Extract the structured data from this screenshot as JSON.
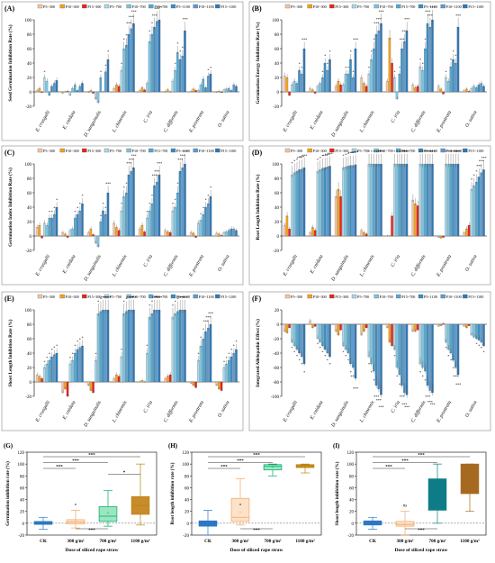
{
  "labels": {
    "species": [
      "E. crusgalli",
      "E. cnidata",
      "D. sanguinalis",
      "L. chinensis",
      "C. iria",
      "C. difformis",
      "E. prostrata",
      "O. sativa"
    ],
    "legend": [
      "P5~300",
      "P10~300",
      "P15~300",
      "P5~700",
      "P10~700",
      "P15~700",
      "P5~1100",
      "P10~1100",
      "P15~1100"
    ],
    "box_categories": [
      "CK",
      "300 g/m²",
      "700 g/m²",
      "1100 g/m²"
    ],
    "box_xlabel": "Dose of siliced rape straw",
    "sig3": "***",
    "sig2": "**",
    "sig1": "*",
    "ns": "ns"
  },
  "colors": {
    "series": [
      "#f5c6a5",
      "#f2a21c",
      "#e8231b",
      "#a9d8ea",
      "#7ec3e0",
      "#54a9d3",
      "#3b8ec2",
      "#5b9bd5",
      "#2e78b5"
    ],
    "box": [
      "#2b78c5",
      "#f4a460",
      "#00a86b",
      "#b8860b"
    ],
    "box_fill": [
      "#2b78c5",
      "#fde2c8",
      "#9be6c0",
      "#c98b2b"
    ],
    "teal": "#0e7c86",
    "brown": "#a56a1f"
  },
  "chart_data": [
    {
      "id": "A",
      "type": "bar",
      "tag": "(A)",
      "ylabel": "Seed Germination Inhibition Rate (%)",
      "yticks": [
        -20,
        0,
        20,
        40,
        60,
        80,
        100
      ],
      "ylim": [
        -20,
        100
      ],
      "series": [
        {
          "name": "P5~300",
          "values": [
            2,
            -2,
            -1,
            5,
            2,
            1,
            1,
            -1
          ]
        },
        {
          "name": "P10~300",
          "values": [
            5,
            0,
            2,
            10,
            6,
            3,
            4,
            1
          ]
        },
        {
          "name": "P15~300",
          "values": [
            -1,
            1,
            -2,
            8,
            3,
            0,
            2,
            -1
          ]
        },
        {
          "name": "P5~700",
          "values": [
            20,
            -5,
            -10,
            30,
            12,
            15,
            2,
            3
          ]
        },
        {
          "name": "P10~700",
          "values": [
            15,
            5,
            -15,
            60,
            70,
            30,
            10,
            4
          ]
        },
        {
          "name": "P15~700",
          "values": [
            -5,
            10,
            20,
            65,
            80,
            55,
            18,
            5
          ]
        },
        {
          "name": "P5~1100",
          "values": [
            8,
            2,
            0,
            80,
            90,
            45,
            6,
            2
          ]
        },
        {
          "name": "P10~1100",
          "values": [
            12,
            8,
            28,
            88,
            98,
            50,
            22,
            10
          ]
        },
        {
          "name": "P15~1100",
          "values": [
            16,
            12,
            45,
            95,
            100,
            85,
            25,
            8
          ]
        }
      ]
    },
    {
      "id": "B",
      "type": "bar",
      "tag": "(B)",
      "ylabel": "Germination Energy Inhibition Rate (%)",
      "yticks": [
        -20,
        0,
        20,
        40,
        60,
        80,
        100
      ],
      "ylim": [
        -20,
        100
      ],
      "series": [
        {
          "name": "P5~300",
          "values": [
            22,
            5,
            8,
            20,
            15,
            10,
            8,
            2
          ]
        },
        {
          "name": "P10~300",
          "values": [
            20,
            3,
            15,
            12,
            75,
            6,
            4,
            4
          ]
        },
        {
          "name": "P15~300",
          "values": [
            -5,
            -2,
            10,
            8,
            40,
            8,
            -3,
            1
          ]
        },
        {
          "name": "P5~700",
          "values": [
            10,
            8,
            10,
            25,
            20,
            35,
            20,
            5
          ]
        },
        {
          "name": "P10~700",
          "values": [
            15,
            12,
            25,
            45,
            -10,
            30,
            15,
            8
          ]
        },
        {
          "name": "P15~700",
          "values": [
            12,
            20,
            25,
            60,
            25,
            60,
            35,
            6
          ]
        },
        {
          "name": "P5~1100",
          "values": [
            30,
            40,
            45,
            80,
            60,
            95,
            45,
            10
          ]
        },
        {
          "name": "P10~1100",
          "values": [
            25,
            30,
            20,
            85,
            70,
            90,
            40,
            12
          ]
        },
        {
          "name": "P15~1100",
          "values": [
            60,
            45,
            60,
            95,
            85,
            100,
            90,
            8
          ]
        }
      ]
    },
    {
      "id": "C",
      "type": "bar",
      "tag": "(C)",
      "ylabel": "Germination Index Inhibition Rate (%)",
      "yticks": [
        -20,
        0,
        20,
        40,
        60,
        80,
        100
      ],
      "ylim": [
        -20,
        100
      ],
      "series": [
        {
          "name": "P5~300",
          "values": [
            12,
            5,
            5,
            18,
            10,
            8,
            5,
            4
          ]
        },
        {
          "name": "P10~300",
          "values": [
            15,
            3,
            10,
            12,
            15,
            6,
            4,
            3
          ]
        },
        {
          "name": "P15~300",
          "values": [
            -3,
            -2,
            2,
            8,
            6,
            5,
            -2,
            1
          ]
        },
        {
          "name": "P5~700",
          "values": [
            18,
            8,
            -10,
            35,
            25,
            35,
            18,
            5
          ]
        },
        {
          "name": "P10~700",
          "values": [
            15,
            10,
            -15,
            55,
            35,
            40,
            22,
            6
          ]
        },
        {
          "name": "P15~700",
          "values": [
            25,
            25,
            20,
            60,
            45,
            60,
            30,
            8
          ]
        },
        {
          "name": "P5~1100",
          "values": [
            25,
            30,
            35,
            85,
            70,
            90,
            40,
            10
          ]
        },
        {
          "name": "P10~1100",
          "values": [
            30,
            35,
            30,
            90,
            75,
            95,
            45,
            10
          ]
        },
        {
          "name": "P15~1100",
          "values": [
            40,
            45,
            60,
            95,
            85,
            100,
            55,
            8
          ]
        }
      ]
    },
    {
      "id": "D",
      "type": "bar",
      "tag": "(D)",
      "ylabel": "Root Length Inhibition Rate (%)",
      "yticks": [
        -20,
        0,
        20,
        40,
        60,
        80,
        100
      ],
      "ylim": [
        -20,
        100
      ],
      "series": [
        {
          "name": "P5~300",
          "values": [
            15,
            5,
            55,
            8,
            0,
            50,
            -2,
            5
          ]
        },
        {
          "name": "P10~300",
          "values": [
            28,
            12,
            65,
            5,
            0,
            45,
            -3,
            10
          ]
        },
        {
          "name": "P15~300",
          "values": [
            10,
            8,
            55,
            3,
            28,
            42,
            -2,
            15
          ]
        },
        {
          "name": "P5~700",
          "values": [
            85,
            90,
            95,
            100,
            100,
            100,
            100,
            65
          ]
        },
        {
          "name": "P10~700",
          "values": [
            88,
            92,
            96,
            100,
            100,
            100,
            100,
            70
          ]
        },
        {
          "name": "P15~700",
          "values": [
            90,
            94,
            97,
            100,
            100,
            100,
            100,
            75
          ]
        },
        {
          "name": "P5~1100",
          "values": [
            92,
            95,
            98,
            100,
            100,
            100,
            100,
            82
          ]
        },
        {
          "name": "P10~1100",
          "values": [
            93,
            96,
            98,
            100,
            100,
            100,
            100,
            88
          ]
        },
        {
          "name": "P15~1100",
          "values": [
            95,
            97,
            99,
            100,
            100,
            100,
            100,
            92
          ]
        }
      ]
    },
    {
      "id": "E",
      "type": "bar",
      "tag": "(E)",
      "ylabel": "Shoot Length Inhibition Rate (%)",
      "yticks": [
        -20,
        0,
        20,
        40,
        60,
        80,
        100
      ],
      "ylim": [
        -20,
        100
      ],
      "series": [
        {
          "name": "P5~300",
          "values": [
            10,
            -15,
            -5,
            5,
            0,
            5,
            -2,
            -5
          ]
        },
        {
          "name": "P10~300",
          "values": [
            8,
            -10,
            -12,
            10,
            2,
            8,
            -5,
            -10
          ]
        },
        {
          "name": "P15~300",
          "values": [
            5,
            -20,
            -15,
            8,
            0,
            10,
            -8,
            -12
          ]
        },
        {
          "name": "P5~700",
          "values": [
            20,
            25,
            30,
            35,
            40,
            90,
            30,
            20
          ]
        },
        {
          "name": "P10~700",
          "values": [
            25,
            30,
            95,
            95,
            90,
            95,
            50,
            25
          ]
        },
        {
          "name": "P15~700",
          "values": [
            30,
            40,
            98,
            98,
            95,
            98,
            60,
            30
          ]
        },
        {
          "name": "P5~1100",
          "values": [
            35,
            45,
            100,
            100,
            100,
            100,
            70,
            35
          ]
        },
        {
          "name": "P10~1100",
          "values": [
            38,
            48,
            100,
            100,
            100,
            100,
            75,
            40
          ]
        },
        {
          "name": "P15~1100",
          "values": [
            40,
            50,
            100,
            100,
            100,
            100,
            80,
            45
          ]
        }
      ]
    },
    {
      "id": "F",
      "type": "bar",
      "tag": "(F)",
      "ylabel": "Integrated Allelopathic Effect (%)",
      "yticks": [
        -100,
        -80,
        -60,
        -40,
        -20,
        0,
        20
      ],
      "ylim": [
        -100,
        20
      ],
      "series": [
        {
          "name": "P5~300",
          "values": [
            -10,
            5,
            -10,
            -15,
            -5,
            -10,
            -3,
            -3
          ]
        },
        {
          "name": "P10~300",
          "values": [
            -12,
            -5,
            -15,
            -10,
            -25,
            -10,
            -2,
            -5
          ]
        },
        {
          "name": "P15~300",
          "values": [
            -5,
            -3,
            -8,
            -5,
            -30,
            -8,
            1,
            -2
          ]
        },
        {
          "name": "P5~700",
          "values": [
            -25,
            -20,
            -30,
            -45,
            -35,
            -55,
            -25,
            -15
          ]
        },
        {
          "name": "P10~700",
          "values": [
            -30,
            -25,
            -35,
            -55,
            -60,
            -60,
            -35,
            -18
          ]
        },
        {
          "name": "P15~700",
          "values": [
            -35,
            -30,
            -40,
            -65,
            -70,
            -65,
            -40,
            -20
          ]
        },
        {
          "name": "P5~1100",
          "values": [
            -40,
            -35,
            -55,
            -85,
            -85,
            -85,
            -50,
            -22
          ]
        },
        {
          "name": "P10~1100",
          "values": [
            -45,
            -40,
            -60,
            -90,
            -95,
            -92,
            -60,
            -25
          ]
        },
        {
          "name": "P15~1100",
          "values": [
            -55,
            -45,
            -75,
            -98,
            -98,
            -95,
            -70,
            -30
          ]
        }
      ]
    },
    {
      "id": "G",
      "type": "box",
      "tag": "(G)",
      "ylabel": "Germination inhibition rate (%)",
      "yticks": [
        -20,
        0,
        20,
        40,
        60,
        80,
        100,
        120
      ],
      "ylim": [
        -20,
        120
      ],
      "boxes": [
        {
          "min": -10,
          "q1": -2,
          "median": 0,
          "q3": 3,
          "max": 10,
          "mean": 0
        },
        {
          "min": -8,
          "q1": -1,
          "median": 2,
          "q3": 6,
          "max": 22,
          "mean": 3
        },
        {
          "min": -5,
          "q1": 3,
          "median": 12,
          "q3": 28,
          "max": 55,
          "mean": 17
        },
        {
          "min": -3,
          "q1": 15,
          "median": 30,
          "q3": 45,
          "max": 100,
          "mean": 32
        }
      ],
      "sig_top": [
        "***",
        "***",
        "***",
        "*"
      ],
      "sig_mid": "*",
      "sig_bottom": "***"
    },
    {
      "id": "H",
      "type": "box",
      "tag": "(H)",
      "ylabel": "Root length inhibition rate (%)",
      "yticks": [
        -20,
        0,
        20,
        40,
        60,
        80,
        100,
        120
      ],
      "ylim": [
        -20,
        120
      ],
      "boxes": [
        {
          "min": -20,
          "q1": -5,
          "median": 0,
          "q3": 4,
          "max": 22,
          "mean": 0
        },
        {
          "min": -3,
          "q1": 3,
          "median": 10,
          "q3": 42,
          "max": 75,
          "mean": 18
        },
        {
          "min": 80,
          "q1": 90,
          "median": 96,
          "q3": 99,
          "max": 100,
          "mean": 95
        },
        {
          "min": 85,
          "q1": 94,
          "median": 97,
          "q3": 99,
          "max": 100,
          "mean": 96
        }
      ],
      "sig_top": [
        "***",
        "***",
        "***"
      ],
      "sig_mid": "*",
      "sig_bottom": "***"
    },
    {
      "id": "I",
      "type": "box",
      "tag": "(I)",
      "ylabel": "Shoot length inhibition rate (%)",
      "yticks": [
        -20,
        0,
        20,
        40,
        60,
        80,
        100,
        120
      ],
      "ylim": [
        -20,
        120
      ],
      "boxes": [
        {
          "min": -10,
          "q1": -3,
          "median": 0,
          "q3": 4,
          "max": 10,
          "mean": 0
        },
        {
          "min": -20,
          "q1": -5,
          "median": -2,
          "q3": 3,
          "max": 20,
          "mean": -2
        },
        {
          "min": 0,
          "q1": 22,
          "median": 55,
          "q3": 75,
          "max": 100,
          "mean": 48
        },
        {
          "min": 20,
          "q1": 50,
          "median": 68,
          "q3": 100,
          "max": 100,
          "mean": 66
        }
      ],
      "sig_top": [
        "***",
        "***",
        "***"
      ],
      "sig_mid": "ns",
      "sig_bottom": "***"
    }
  ]
}
